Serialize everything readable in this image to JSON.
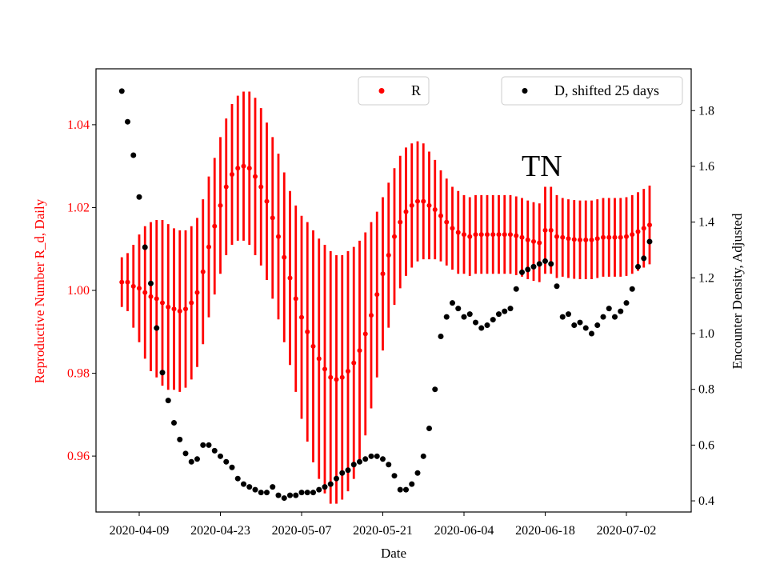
{
  "chart_data": {
    "type": "scatter",
    "title": "",
    "annotation": "TN",
    "xlabel": "Date",
    "ylabel_left": "Reproductive Number R_d, Daily",
    "ylabel_right": "Encounter Density, Adjusted",
    "x_start": "2020-04-06",
    "x_ticks": [
      "2020-04-09",
      "2020-04-23",
      "2020-05-07",
      "2020-05-21",
      "2020-06-04",
      "2020-06-18",
      "2020-07-02"
    ],
    "y_left_ticks": [
      "0.96",
      "0.98",
      "1.00",
      "1.02",
      "1.04"
    ],
    "y_right_ticks": [
      "0.4",
      "0.6",
      "0.8",
      "1.0",
      "1.2",
      "1.4",
      "1.6",
      "1.8"
    ],
    "y_left_lim": [
      0.9465,
      1.0535
    ],
    "y_right_lim": [
      0.36,
      1.95
    ],
    "grid": false,
    "colors": {
      "R": "#ff0000",
      "D": "#000000"
    },
    "series": [
      {
        "name": "R",
        "axis": "left",
        "values": [
          1.002,
          1.002,
          1.001,
          1.0005,
          0.9995,
          0.9985,
          0.998,
          0.997,
          0.996,
          0.9955,
          0.995,
          0.9955,
          0.997,
          0.9995,
          1.0045,
          1.0105,
          1.0155,
          1.0205,
          1.025,
          1.028,
          1.0295,
          1.03,
          1.0295,
          1.0275,
          1.025,
          1.0215,
          1.0175,
          1.013,
          1.008,
          1.003,
          0.998,
          0.9935,
          0.99,
          0.9865,
          0.9835,
          0.981,
          0.979,
          0.9785,
          0.979,
          0.9805,
          0.9825,
          0.9855,
          0.9895,
          0.994,
          0.999,
          1.004,
          1.0085,
          1.013,
          1.0165,
          1.019,
          1.0205,
          1.0215,
          1.0215,
          1.0205,
          1.0195,
          1.018,
          1.0165,
          1.015,
          1.014,
          1.0135,
          1.013,
          1.0135,
          1.0135,
          1.0135,
          1.0135,
          1.0135,
          1.0135,
          1.0135,
          1.0132,
          1.0128,
          1.0122,
          1.0118,
          1.0115,
          1.0145,
          1.0145,
          1.013,
          1.0128,
          1.0125,
          1.0123,
          1.0122,
          1.0122,
          1.0122,
          1.0125,
          1.0128,
          1.0128,
          1.0128,
          1.0128,
          1.013,
          1.0135,
          1.0142,
          1.015,
          1.0158
        ],
        "errors": [
          0.006,
          0.007,
          0.01,
          0.013,
          0.016,
          0.018,
          0.019,
          0.02,
          0.02,
          0.0195,
          0.0195,
          0.019,
          0.0185,
          0.018,
          0.0175,
          0.017,
          0.0165,
          0.0165,
          0.0165,
          0.017,
          0.0175,
          0.018,
          0.0185,
          0.019,
          0.019,
          0.019,
          0.0195,
          0.02,
          0.0205,
          0.021,
          0.0225,
          0.0245,
          0.0265,
          0.028,
          0.029,
          0.03,
          0.0305,
          0.03,
          0.0295,
          0.029,
          0.028,
          0.0265,
          0.0245,
          0.0225,
          0.02,
          0.0185,
          0.0175,
          0.0165,
          0.016,
          0.0155,
          0.015,
          0.0145,
          0.014,
          0.013,
          0.012,
          0.011,
          0.0105,
          0.01,
          0.01,
          0.0095,
          0.0095,
          0.0095,
          0.0095,
          0.0095,
          0.0095,
          0.0095,
          0.0095,
          0.0095,
          0.0095,
          0.0095,
          0.0095,
          0.0095,
          0.0095,
          0.0105,
          0.0105,
          0.01,
          0.0095,
          0.0095,
          0.0095,
          0.0095,
          0.0095,
          0.0095,
          0.0095,
          0.0095,
          0.0095,
          0.0095,
          0.0095,
          0.0095,
          0.0095,
          0.0095,
          0.0095,
          0.0095
        ]
      },
      {
        "name": "D, shifted 25 days",
        "axis": "right",
        "values": [
          1.87,
          1.76,
          1.64,
          1.49,
          1.31,
          1.18,
          1.02,
          0.86,
          0.76,
          0.68,
          0.62,
          0.57,
          0.54,
          0.55,
          0.6,
          0.6,
          0.58,
          0.56,
          0.54,
          0.52,
          0.48,
          0.46,
          0.45,
          0.44,
          0.43,
          0.43,
          0.45,
          0.42,
          0.41,
          0.42,
          0.42,
          0.43,
          0.43,
          0.43,
          0.44,
          0.45,
          0.46,
          0.48,
          0.5,
          0.51,
          0.53,
          0.54,
          0.55,
          0.56,
          0.56,
          0.55,
          0.53,
          0.49,
          0.44,
          0.44,
          0.46,
          0.5,
          0.56,
          0.66,
          0.8,
          0.99,
          1.06,
          1.11,
          1.09,
          1.06,
          1.07,
          1.04,
          1.02,
          1.03,
          1.05,
          1.07,
          1.08,
          1.09,
          1.16,
          1.22,
          1.23,
          1.24,
          1.25,
          1.26,
          1.25,
          1.17,
          1.06,
          1.07,
          1.03,
          1.04,
          1.02,
          1.0,
          1.03,
          1.06,
          1.09,
          1.06,
          1.08,
          1.11,
          1.16,
          1.24,
          1.27,
          1.33
        ]
      }
    ]
  },
  "legend_r": {
    "label": "R"
  },
  "legend_d": {
    "label": "D, shifted 25 days"
  }
}
